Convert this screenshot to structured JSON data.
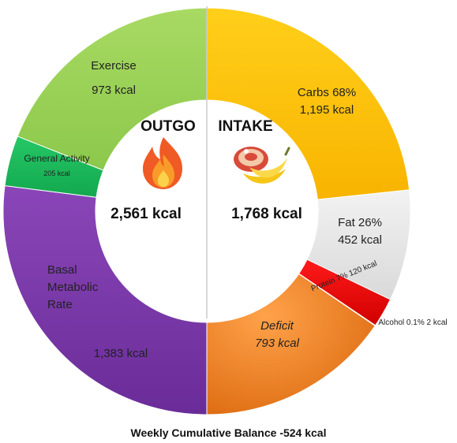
{
  "chart_data": {
    "type": "pie",
    "variant": "donut",
    "footer": "Weekly Cumulative Balance -524 kcal",
    "outgo": {
      "header": "OUTGO",
      "total_label": "2,561 kcal",
      "icon": "fire-icon",
      "segments": [
        {
          "key": "exercise",
          "label_lines": [
            "Exercise",
            "973 kcal"
          ],
          "value": 973,
          "color": "#9ed25b"
        },
        {
          "key": "general",
          "label_lines": [
            "General Activity",
            "205 kcal"
          ],
          "value": 205,
          "color": "#1fbf5f"
        },
        {
          "key": "basal",
          "label_lines": [
            "Basal",
            "Metabolic",
            "Rate",
            "1,383 kcal"
          ],
          "value": 1383,
          "color": "#7b3aa8"
        }
      ]
    },
    "intake": {
      "header": "INTAKE",
      "total_label": "1,768 kcal",
      "icon": "food-icon",
      "segments": [
        {
          "key": "carbs",
          "label_lines": [
            "Carbs 68%",
            "1,195 kcal"
          ],
          "value": 1195,
          "color": "#ffc000"
        },
        {
          "key": "fat",
          "label_lines": [
            "Fat 26%",
            "452 kcal"
          ],
          "value": 452,
          "color": "#e6e6e6"
        },
        {
          "key": "protein",
          "label_lines": [
            "Protein 7% 120 kcal"
          ],
          "value": 120,
          "color": "#e8000b"
        },
        {
          "key": "alcohol",
          "label_lines": [
            "Alcohol 0.1% 2 kcal"
          ],
          "value": 2,
          "color": "#8b0000"
        },
        {
          "key": "deficit",
          "label_lines": [
            "Deficit",
            "793 kcal"
          ],
          "value": 793,
          "color": "#f07d14"
        }
      ]
    }
  }
}
